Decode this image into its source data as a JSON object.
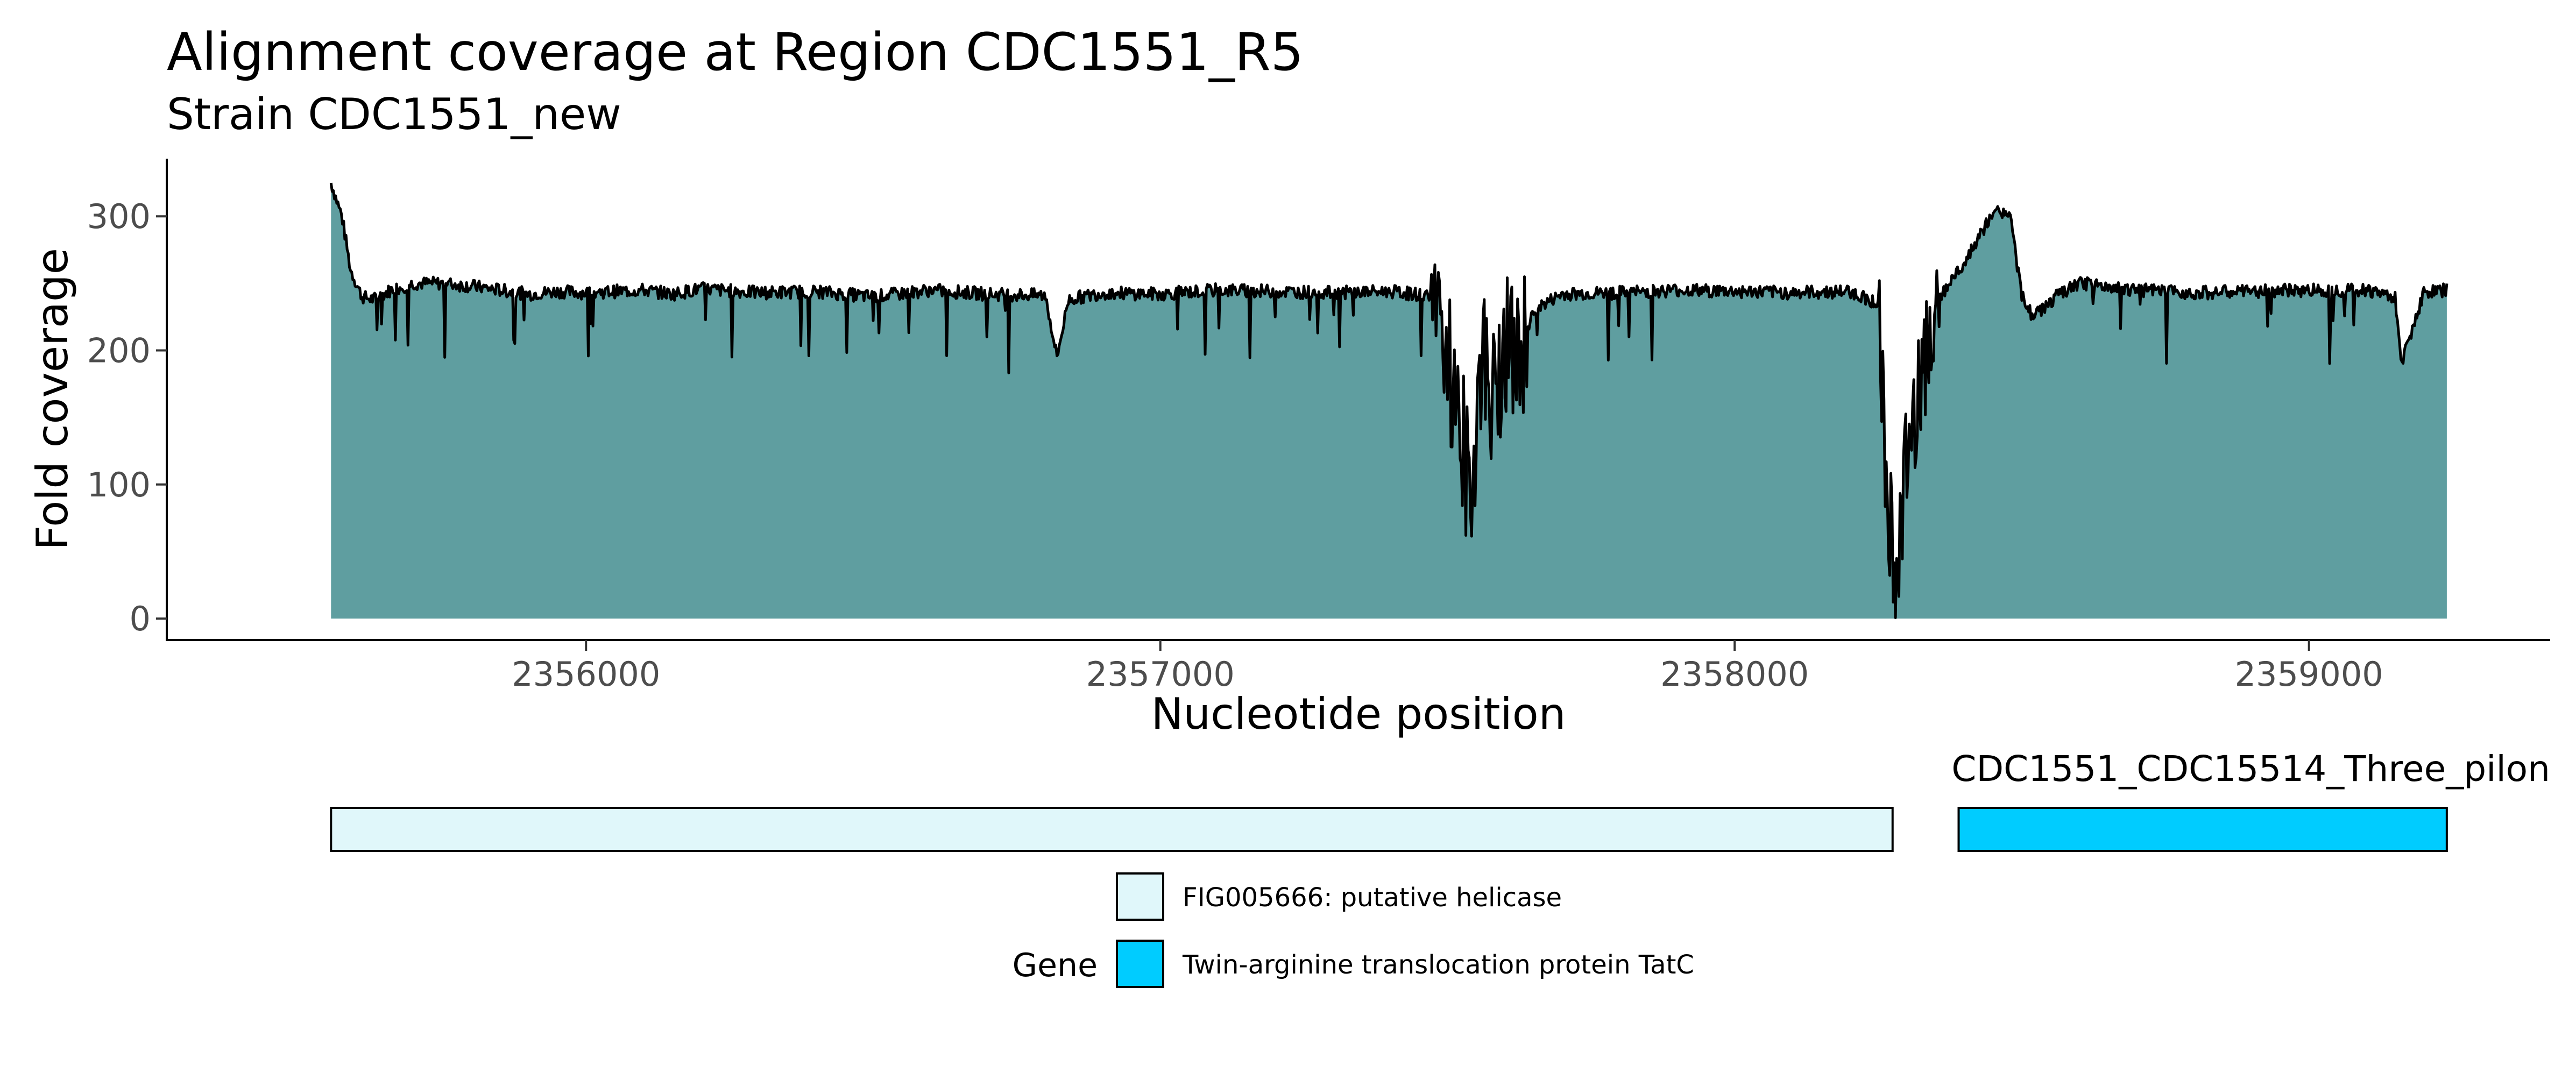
{
  "chart_data": {
    "type": "area",
    "title": "Alignment coverage at Region CDC1551_R5",
    "subtitle": "Strain CDC1551_new",
    "xlabel": "Nucleotide position",
    "ylabel": "Fold coverage",
    "xlim": [
      2355270,
      2359420
    ],
    "ylim": [
      -16,
      343
    ],
    "x_ticks": [
      2356000,
      2357000,
      2358000,
      2359000
    ],
    "x_tick_labels": [
      "2356000",
      "2357000",
      "2358000",
      "2359000"
    ],
    "y_ticks": [
      0,
      100,
      200,
      300
    ],
    "y_tick_labels": [
      "0",
      "100",
      "200",
      "300"
    ],
    "grid": false,
    "fill_color": "#5f9ea0",
    "line_color": "#000000",
    "series": [
      {
        "x": [
          2355556,
          2355575,
          2355590,
          2355610,
          2355630,
          2355660,
          2355700,
          2355750,
          2355800,
          2355850,
          2355900,
          2355950,
          2356000,
          2356100,
          2356150,
          2356200,
          2356300,
          2356400,
          2356500,
          2356600,
          2356700,
          2356800,
          2356820,
          2356840,
          2356900,
          2357000,
          2357100,
          2357200,
          2357300,
          2357400,
          2357480,
          2357520,
          2357540,
          2357560,
          2357580,
          2357600,
          2357620,
          2357650,
          2357700,
          2357800,
          2357900,
          2358000,
          2358100,
          2358200,
          2358250,
          2358270,
          2358285,
          2358300,
          2358320,
          2358340,
          2358360,
          2358380,
          2358400,
          2358420,
          2358440,
          2358460,
          2358480,
          2358500,
          2358520,
          2358560,
          2358600,
          2358700,
          2358800,
          2358900,
          2359000,
          2359100,
          2359150,
          2359160,
          2359200,
          2359240
        ],
        "y": [
          325,
          300,
          260,
          240,
          238,
          245,
          250,
          250,
          248,
          245,
          242,
          244,
          243,
          245,
          242,
          246,
          243,
          244,
          240,
          245,
          242,
          241,
          195,
          238,
          243,
          242,
          245,
          244,
          243,
          244,
          240,
          150,
          90,
          200,
          160,
          210,
          185,
          230,
          242,
          243,
          245,
          244,
          243,
          244,
          235,
          70,
          45,
          110,
          180,
          220,
          240,
          255,
          265,
          280,
          295,
          305,
          300,
          240,
          225,
          240,
          250,
          245,
          243,
          244,
          245,
          245,
          240,
          190,
          243,
          245
        ]
      }
    ]
  },
  "genes": {
    "track_label": "CDC1551_CDC15514_Three_pilon",
    "legend_title": "Gene",
    "items": [
      {
        "name": "FIG005666: putative helicase",
        "start": 2355556,
        "end": 2358275,
        "color": "#e0f7fa"
      },
      {
        "name": "Twin-arginine translocation protein TatC",
        "start": 2358390,
        "end": 2359240,
        "color": "#00ccff"
      }
    ]
  }
}
